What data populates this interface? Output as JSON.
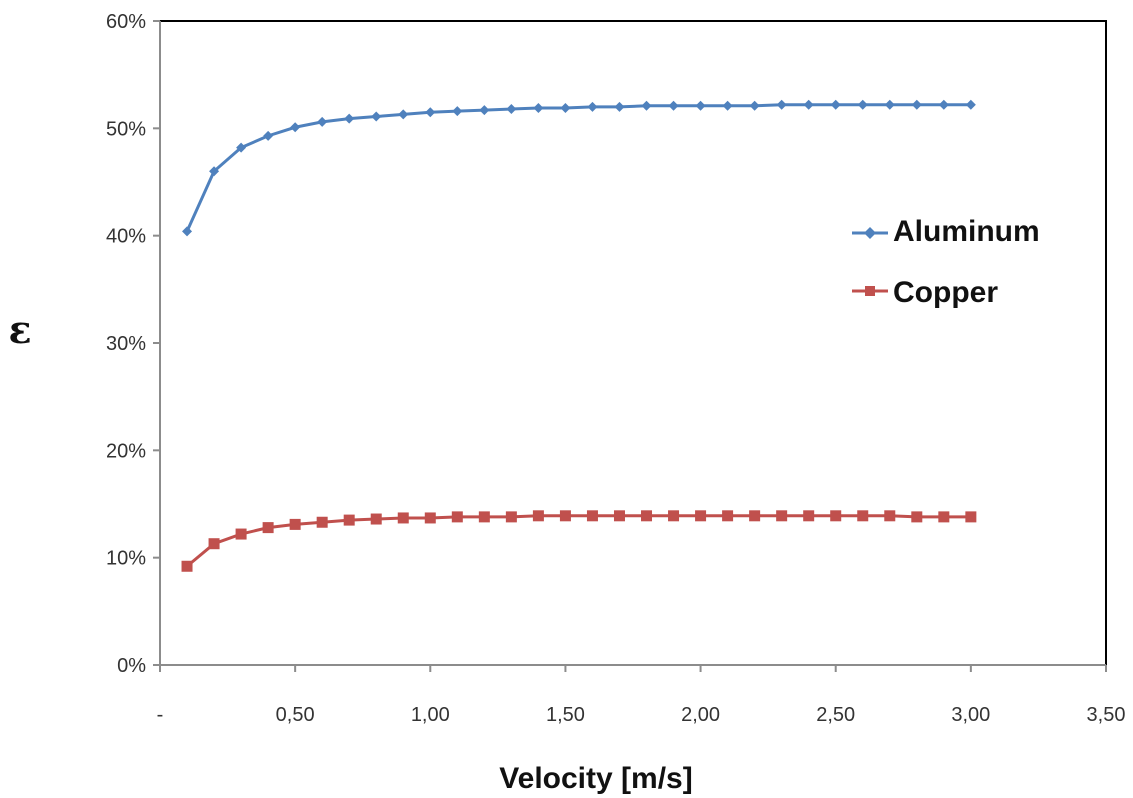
{
  "chart_data": {
    "type": "line",
    "title": "",
    "xlabel": "Velocity [m/s]",
    "ylabel": "ε",
    "xlim": [
      0,
      3.5
    ],
    "ylim": [
      0,
      0.6
    ],
    "x_ticks": [
      {
        "value": 0,
        "label": "-"
      },
      {
        "value": 0.5,
        "label": "0,50"
      },
      {
        "value": 1.0,
        "label": "1,00"
      },
      {
        "value": 1.5,
        "label": "1,50"
      },
      {
        "value": 2.0,
        "label": "2,00"
      },
      {
        "value": 2.5,
        "label": "2,50"
      },
      {
        "value": 3.0,
        "label": "3,00"
      },
      {
        "value": 3.5,
        "label": "3,50"
      }
    ],
    "y_ticks": [
      {
        "value": 0.0,
        "label": "0%"
      },
      {
        "value": 0.1,
        "label": "10%"
      },
      {
        "value": 0.2,
        "label": "20%"
      },
      {
        "value": 0.3,
        "label": "30%"
      },
      {
        "value": 0.4,
        "label": "40%"
      },
      {
        "value": 0.5,
        "label": "50%"
      },
      {
        "value": 0.6,
        "label": "60%"
      }
    ],
    "grid": false,
    "legend_position": "right",
    "x": [
      0.1,
      0.2,
      0.3,
      0.4,
      0.5,
      0.6,
      0.7,
      0.8,
      0.9,
      1.0,
      1.1,
      1.2,
      1.3,
      1.4,
      1.5,
      1.6,
      1.7,
      1.8,
      1.9,
      2.0,
      2.1,
      2.2,
      2.3,
      2.4,
      2.5,
      2.6,
      2.7,
      2.8,
      2.9,
      3.0
    ],
    "series": [
      {
        "name": "Aluminum",
        "color": "#4f81bd",
        "marker": "diamond",
        "values": [
          0.404,
          0.46,
          0.482,
          0.493,
          0.501,
          0.506,
          0.509,
          0.511,
          0.513,
          0.515,
          0.516,
          0.517,
          0.518,
          0.519,
          0.519,
          0.52,
          0.52,
          0.521,
          0.521,
          0.521,
          0.521,
          0.521,
          0.522,
          0.522,
          0.522,
          0.522,
          0.522,
          0.522,
          0.522,
          0.522
        ]
      },
      {
        "name": "Copper",
        "color": "#c0504d",
        "marker": "square",
        "values": [
          0.092,
          0.113,
          0.122,
          0.128,
          0.131,
          0.133,
          0.135,
          0.136,
          0.137,
          0.137,
          0.138,
          0.138,
          0.138,
          0.139,
          0.139,
          0.139,
          0.139,
          0.139,
          0.139,
          0.139,
          0.139,
          0.139,
          0.139,
          0.139,
          0.139,
          0.139,
          0.139,
          0.138,
          0.138,
          0.138
        ]
      }
    ]
  }
}
